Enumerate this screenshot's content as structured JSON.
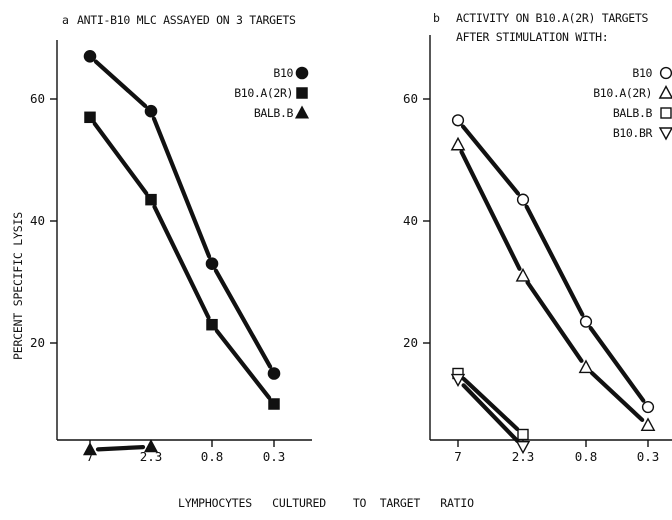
{
  "chart_data": [
    {
      "type": "line",
      "panel_letter": "a",
      "title": "ANTI-B10 MLC ASSAYED ON 3 TARGETS",
      "title_line2": "",
      "ylabel": "PERCENT SPECIFIC LYSIS",
      "xlabel": "",
      "categories": [
        "7",
        "2.3",
        "0.8",
        "0.3"
      ],
      "y_ticks": [
        20,
        40,
        60
      ],
      "ylim": [
        0,
        70
      ],
      "series": [
        {
          "name": "B10",
          "marker": "circle-filled",
          "values": [
            67,
            58,
            33,
            15
          ]
        },
        {
          "name": "B10.A(2R)",
          "marker": "square-filled",
          "values": [
            57,
            43.5,
            23,
            10
          ]
        },
        {
          "name": "BALB.B",
          "marker": "triangle-filled",
          "values": [
            2.5,
            3,
            null,
            null
          ]
        }
      ]
    },
    {
      "type": "line",
      "panel_letter": "b",
      "title": "ACTIVITY ON B10.A(2R) TARGETS",
      "title_line2": "AFTER STIMULATION WITH:",
      "ylabel": "",
      "xlabel": "",
      "categories": [
        "7",
        "2.3",
        "0.8",
        "0.3"
      ],
      "y_ticks": [
        20,
        40,
        60
      ],
      "ylim": [
        0,
        70
      ],
      "series": [
        {
          "name": "B10",
          "marker": "circle-open",
          "values": [
            56.5,
            43.5,
            23.5,
            9.5
          ]
        },
        {
          "name": "B10.A(2R)",
          "marker": "triangle-open",
          "values": [
            52.5,
            31,
            16,
            6.5
          ]
        },
        {
          "name": "BALB.B",
          "marker": "square-open",
          "values": [
            15,
            5,
            null,
            null
          ]
        },
        {
          "name": "B10.BR",
          "marker": "triangle-down-open",
          "values": [
            14,
            3,
            null,
            null
          ]
        }
      ]
    }
  ],
  "shared_xlabel": "LYMPHOCYTES   CULTURED    TO  TARGET   RATIO"
}
